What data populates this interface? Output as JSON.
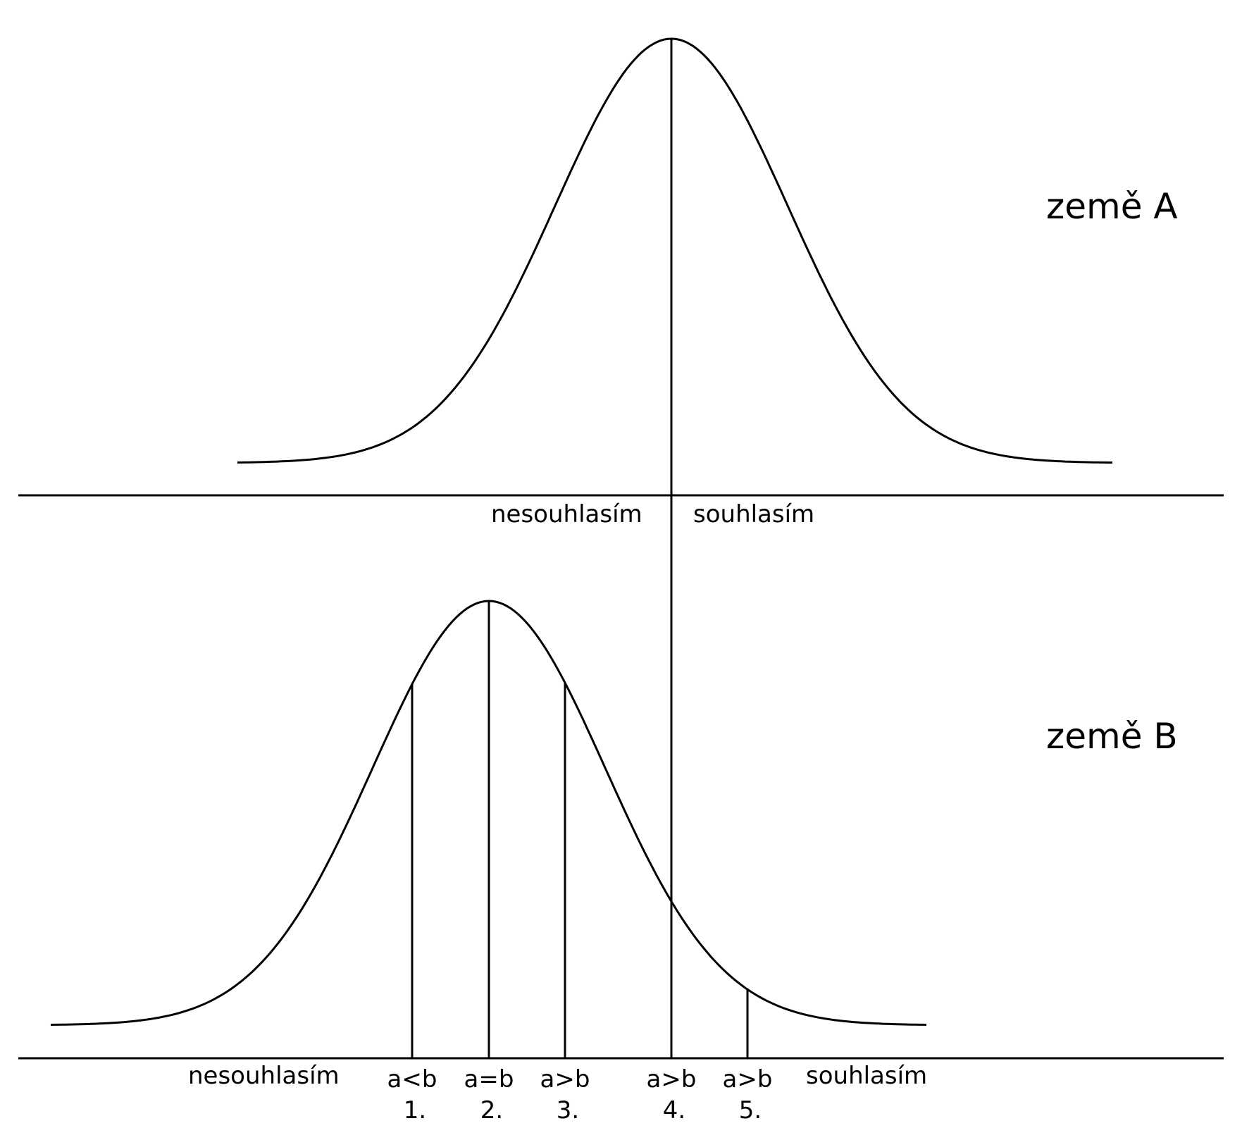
{
  "country_a": {
    "title": "země A",
    "left_label": "nesouhlasím",
    "right_label": "souhlasím"
  },
  "country_b": {
    "title": "země B",
    "left_label": "nesouhlasím",
    "right_label": "souhlasím",
    "markers": [
      {
        "relation": "a<b",
        "number": "1."
      },
      {
        "relation": "a=b",
        "number": "2."
      },
      {
        "relation": "a>b",
        "number": "3."
      },
      {
        "relation": "a>b",
        "number": "4."
      },
      {
        "relation": "a>b",
        "number": "5."
      }
    ]
  },
  "colors": {
    "line": "#000000",
    "background": "#ffffff"
  }
}
